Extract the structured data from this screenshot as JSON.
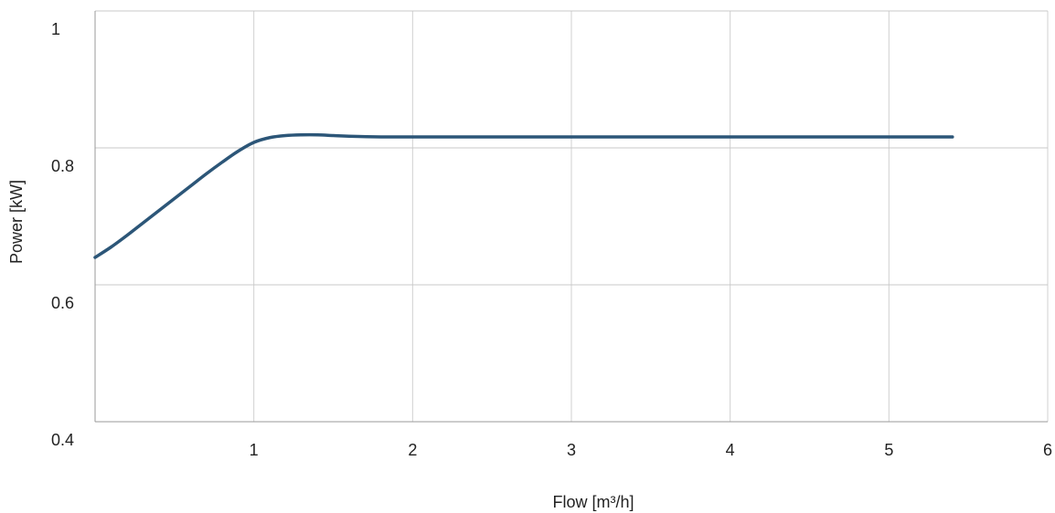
{
  "chart_data": {
    "type": "line",
    "title": "",
    "xlabel": "Flow [m³/h]",
    "ylabel": "Power [kW]",
    "xlim": [
      0,
      6
    ],
    "ylim": [
      0.4,
      1.0
    ],
    "x_ticks": [
      1,
      2,
      3,
      4,
      5,
      6
    ],
    "x_tick_labels": [
      "1",
      "2",
      "3",
      "4",
      "5",
      "6"
    ],
    "y_ticks": [
      0.4,
      0.6,
      0.8,
      1.0
    ],
    "y_tick_labels": [
      "0.4",
      "0.6",
      "0.8",
      "1"
    ],
    "grid": true,
    "series": [
      {
        "color": "#2c5678",
        "x": [
          0,
          0.1,
          0.2,
          0.3,
          0.4,
          0.5,
          0.6,
          0.7,
          0.8,
          0.9,
          1.0,
          1.1,
          1.2,
          1.3,
          1.4,
          1.5,
          1.6,
          1.8,
          2.0,
          2.5,
          3.0,
          3.5,
          4.0,
          4.5,
          5.0,
          5.4
        ],
        "y": [
          0.64,
          0.655,
          0.672,
          0.69,
          0.708,
          0.726,
          0.744,
          0.762,
          0.779,
          0.795,
          0.808,
          0.815,
          0.818,
          0.819,
          0.819,
          0.818,
          0.817,
          0.816,
          0.816,
          0.816,
          0.816,
          0.816,
          0.816,
          0.816,
          0.816,
          0.816
        ]
      }
    ]
  }
}
